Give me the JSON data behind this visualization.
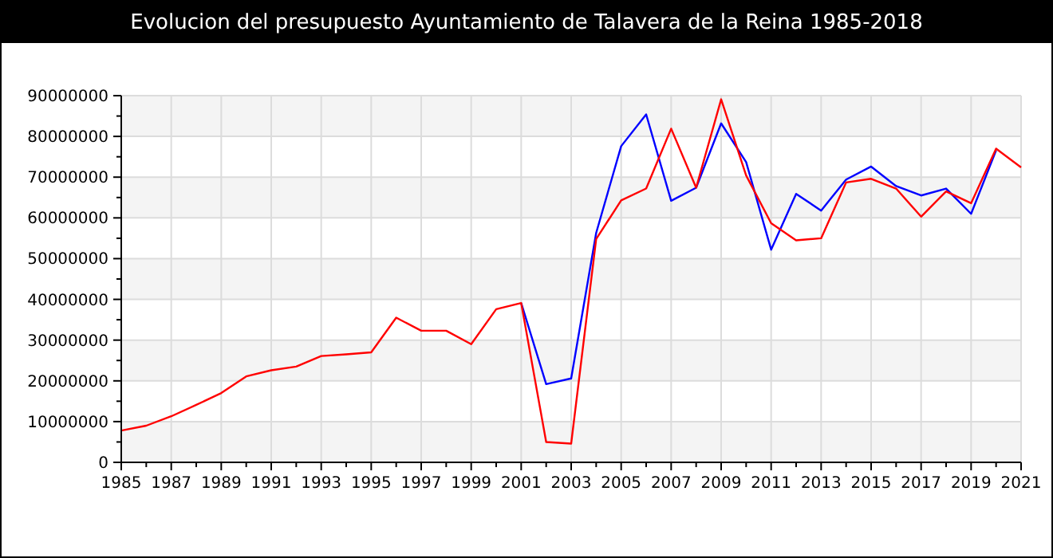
{
  "chart_data": {
    "type": "line",
    "title": "Evolucion del presupuesto Ayuntamiento de Talavera de la Reina 1985-2018",
    "xlim": [
      1985,
      2021
    ],
    "xticks": [
      1985,
      1987,
      1989,
      1991,
      1993,
      1995,
      1997,
      1999,
      2001,
      2003,
      2005,
      2007,
      2009,
      2011,
      2013,
      2015,
      2017,
      2019,
      2021
    ],
    "ylim": [
      0,
      90000000
    ],
    "yticks": [
      0,
      10000000,
      20000000,
      30000000,
      40000000,
      50000000,
      60000000,
      70000000,
      80000000,
      90000000
    ],
    "grid": true,
    "marker": "none",
    "line_style": "solid",
    "series": [
      {
        "color": "#0000ff",
        "x": [
          2001,
          2002,
          2003,
          2004,
          2005,
          2006,
          2007,
          2008,
          2009,
          2010,
          2011,
          2012,
          2013,
          2014,
          2015,
          2016,
          2017,
          2018,
          2019,
          2020
        ],
        "values": [
          39100000,
          19200000,
          20600000,
          56300000,
          77600000,
          85400000,
          64200000,
          67400000,
          83200000,
          73700000,
          52200000,
          65900000,
          61800000,
          69400000,
          72600000,
          67800000,
          65500000,
          67200000,
          61000000,
          76600000
        ]
      },
      {
        "color": "#ff0000",
        "x": [
          1985,
          1986,
          1987,
          1988,
          1989,
          1990,
          1991,
          1992,
          1993,
          1994,
          1995,
          1996,
          1997,
          1998,
          1999,
          2000,
          2001,
          2002,
          2003,
          2004,
          2005,
          2006,
          2007,
          2008,
          2009,
          2010,
          2011,
          2012,
          2013,
          2014,
          2015,
          2016,
          2017,
          2018,
          2019,
          2020,
          2021
        ],
        "values": [
          7800000,
          9000000,
          11300000,
          14100000,
          17000000,
          21100000,
          22600000,
          23500000,
          26100000,
          26500000,
          27000000,
          35500000,
          32300000,
          32300000,
          29000000,
          37600000,
          39100000,
          5000000,
          4600000,
          54800000,
          64300000,
          67200000,
          81900000,
          67400000,
          89100000,
          70400000,
          58700000,
          54500000,
          55000000,
          68700000,
          69600000,
          67200000,
          60300000,
          66500000,
          63600000,
          77000000,
          72400000
        ]
      }
    ]
  }
}
